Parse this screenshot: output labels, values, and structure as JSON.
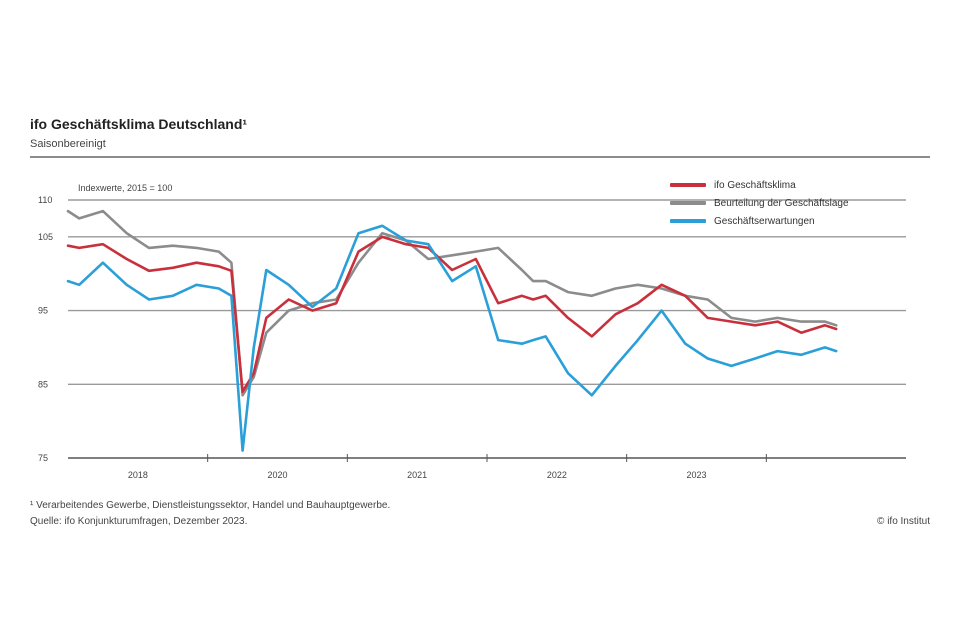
{
  "header": {
    "title": "ifo Geschäftsklima Deutschland¹",
    "subtitle": "Saisonbereinigt"
  },
  "footer": {
    "footnote": "¹ Verarbeitendes Gewerbe, Dienstleistungssektor, Handel und Bauhauptgewerbe.",
    "source": "Quelle: ifo Konjunkturumfragen, Dezember 2023.",
    "credit": "© ifo Institut"
  },
  "chart_data": {
    "type": "line",
    "unit_note": "Indexwerte, 2015 = 100",
    "ylim": [
      75,
      110
    ],
    "yticks": [
      75,
      85,
      95,
      105,
      110
    ],
    "ytick_labels": [
      "75",
      "85",
      "95",
      "105",
      "110"
    ],
    "xlim": [
      2018.0,
      2024.0
    ],
    "xtick_labels": [
      {
        "x": 2018.5,
        "label": "2018"
      },
      {
        "x": 2019.5,
        "label": "2020"
      },
      {
        "x": 2020.5,
        "label": "2021"
      },
      {
        "x": 2021.5,
        "label": "2022"
      },
      {
        "x": 2022.5,
        "label": "2023"
      }
    ],
    "grid": true,
    "legend_position": "top-right",
    "series": [
      {
        "name": "ifo Geschäftsklima",
        "color": "#c8313c",
        "x": [
          2018.0,
          2018.08,
          2018.25,
          2018.42,
          2018.58,
          2018.75,
          2018.92,
          2019.08,
          2019.17,
          2019.25,
          2019.33,
          2019.42,
          2019.58,
          2019.75,
          2019.92,
          2020.08,
          2020.25,
          2020.42,
          2020.58,
          2020.75,
          2020.92,
          2021.08,
          2021.25,
          2021.33,
          2021.42,
          2021.58,
          2021.75,
          2021.92,
          2022.08,
          2022.25,
          2022.42,
          2022.58,
          2022.75,
          2022.92,
          2023.08,
          2023.25,
          2023.42,
          2023.5
        ],
        "values": [
          103.8,
          103.5,
          104.0,
          102.0,
          100.4,
          100.8,
          101.5,
          101.0,
          100.4,
          84.0,
          86.5,
          94.0,
          96.5,
          95.0,
          96.0,
          103.0,
          105.0,
          104.0,
          103.5,
          100.5,
          102.0,
          96.0,
          97.0,
          96.5,
          97.0,
          94.0,
          91.5,
          94.5,
          96.0,
          98.5,
          97.0,
          94.0,
          93.5,
          93.0,
          93.5,
          92.0,
          93.0,
          92.5
        ]
      },
      {
        "name": "Beurteilung der Geschäftslage",
        "color": "#8c8c8c",
        "x": [
          2018.0,
          2018.08,
          2018.25,
          2018.42,
          2018.58,
          2018.75,
          2018.92,
          2019.08,
          2019.17,
          2019.25,
          2019.33,
          2019.42,
          2019.58,
          2019.75,
          2019.92,
          2020.08,
          2020.25,
          2020.42,
          2020.58,
          2020.75,
          2020.92,
          2021.08,
          2021.25,
          2021.33,
          2021.42,
          2021.58,
          2021.75,
          2021.92,
          2022.08,
          2022.25,
          2022.42,
          2022.58,
          2022.75,
          2022.92,
          2023.08,
          2023.25,
          2023.42,
          2023.5
        ],
        "values": [
          108.5,
          107.5,
          108.5,
          105.5,
          103.5,
          103.8,
          103.5,
          103.0,
          101.5,
          83.5,
          86.0,
          92.0,
          95.0,
          96.0,
          96.5,
          101.5,
          105.5,
          104.5,
          102.0,
          102.5,
          103.0,
          103.5,
          100.5,
          99.0,
          99.0,
          97.5,
          97.0,
          98.0,
          98.5,
          98.0,
          97.0,
          96.5,
          94.0,
          93.5,
          94.0,
          93.5,
          93.5,
          93.0
        ]
      },
      {
        "name": "Geschäftserwartungen",
        "color": "#2a9fd8",
        "x": [
          2018.0,
          2018.08,
          2018.25,
          2018.42,
          2018.58,
          2018.75,
          2018.92,
          2019.08,
          2019.17,
          2019.25,
          2019.33,
          2019.42,
          2019.58,
          2019.75,
          2019.92,
          2020.08,
          2020.25,
          2020.42,
          2020.58,
          2020.75,
          2020.92,
          2021.08,
          2021.25,
          2021.33,
          2021.42,
          2021.58,
          2021.75,
          2021.92,
          2022.08,
          2022.25,
          2022.42,
          2022.58,
          2022.75,
          2022.92,
          2023.08,
          2023.25,
          2023.42,
          2023.5
        ],
        "values": [
          99.0,
          98.5,
          101.5,
          98.5,
          96.5,
          97.0,
          98.5,
          98.0,
          97.0,
          76.0,
          90.0,
          100.5,
          98.5,
          95.5,
          98.0,
          105.5,
          106.5,
          104.5,
          104.0,
          99.0,
          101.0,
          91.0,
          90.5,
          91.0,
          91.5,
          86.5,
          83.5,
          87.5,
          91.0,
          95.0,
          90.5,
          88.5,
          87.5,
          88.5,
          89.5,
          89.0,
          90.0,
          89.5
        ]
      }
    ]
  }
}
